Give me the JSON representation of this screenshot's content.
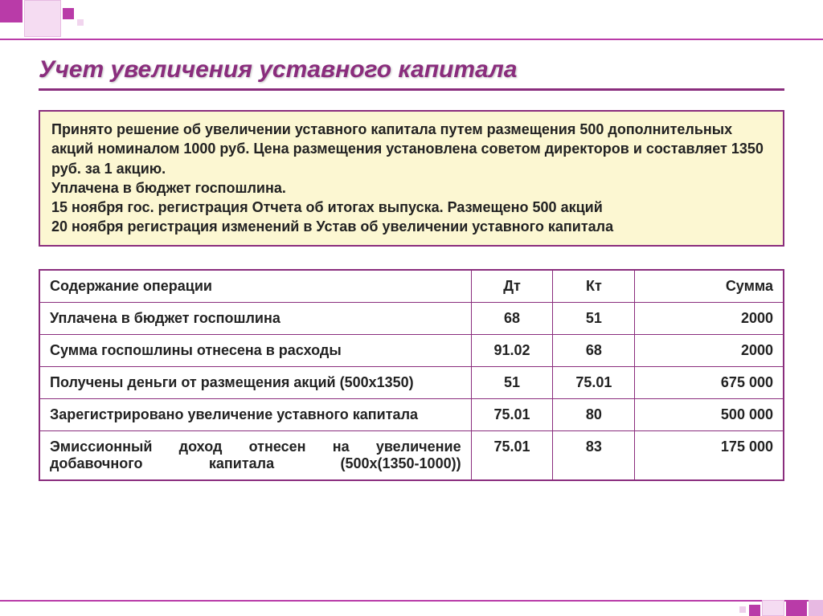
{
  "title": "Учет увеличения уставного капитала",
  "info_lines": [
    "Принято решение об увеличении уставного капитала путем размещения 500 дополнительных акций номиналом 1000 руб. Цена размещения установлена советом директоров и составляет 1350 руб. за 1 акцию.",
    "Уплачена в бюджет госпошлина.",
    "15 ноября гос. регистрация Отчета об итогах выпуска. Размещено 500 акций",
    "20 ноября регистрация изменений в Устав об увеличении уставного капитала"
  ],
  "table": {
    "columns": [
      "Содержание операции",
      "Дт",
      "Кт",
      "Сумма"
    ],
    "rows": [
      [
        "Уплачена в бюджет госпошлина",
        "68",
        "51",
        "2000"
      ],
      [
        "Сумма госпошлины отнесена в расходы",
        "91.02",
        "68",
        "2000"
      ],
      [
        "Получены деньги от размещения акций (500х1350)",
        "51",
        "75.01",
        "675 000"
      ],
      [
        "Зарегистрировано увеличение уставного капитала",
        "75.01",
        "80",
        "500 000"
      ],
      [
        "Эмиссионный доход отнесен на увеличение добавочного капитала (500х(1350-1000))",
        "75.01",
        "83",
        "175 000"
      ]
    ]
  },
  "colors": {
    "accent": "#8a2d7d",
    "accent_bright": "#b93ba8",
    "info_bg": "#fcf7d2",
    "deco_light": "#f5dcf2",
    "deco_border": "#e7b9e2",
    "text": "#222222",
    "background": "#ffffff"
  },
  "typography": {
    "title_fontsize": 30,
    "body_fontsize": 18,
    "font_family": "Arial"
  }
}
